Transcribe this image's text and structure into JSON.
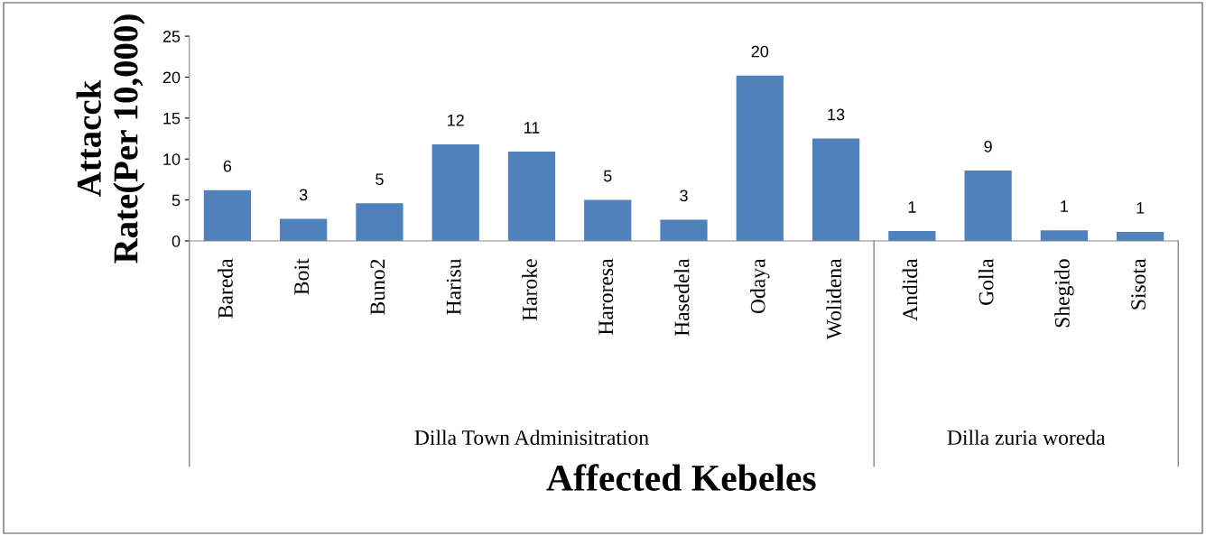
{
  "chart_data": {
    "type": "bar",
    "ylabel": "Attacck Rate(Per 10,000)",
    "xlabel": "Affected Kebeles",
    "categories": [
      "Bareda",
      "Boit",
      "Buno2",
      "Harisu",
      "Haroke",
      "Haroresa",
      "Hasedela",
      "Odaya",
      "Wolidena",
      "Andida",
      "Golla",
      "Shegido",
      "Sisota"
    ],
    "values": [
      6.2,
      2.7,
      4.6,
      11.8,
      10.9,
      5.0,
      2.6,
      20.2,
      12.5,
      1.2,
      8.6,
      1.3,
      1.1
    ],
    "value_labels": [
      "6",
      "3",
      "5",
      "12",
      "11",
      "5",
      "3",
      "20",
      "13",
      "1",
      "9",
      "1",
      "1"
    ],
    "color": "#4f81bd",
    "ylim": [
      0,
      25
    ],
    "yticks": [
      0,
      5,
      10,
      15,
      20,
      25
    ],
    "grid": false,
    "legend": false,
    "annotations": [
      "Dilla Town Adminisitration",
      "Dilla zuria woreda"
    ]
  }
}
